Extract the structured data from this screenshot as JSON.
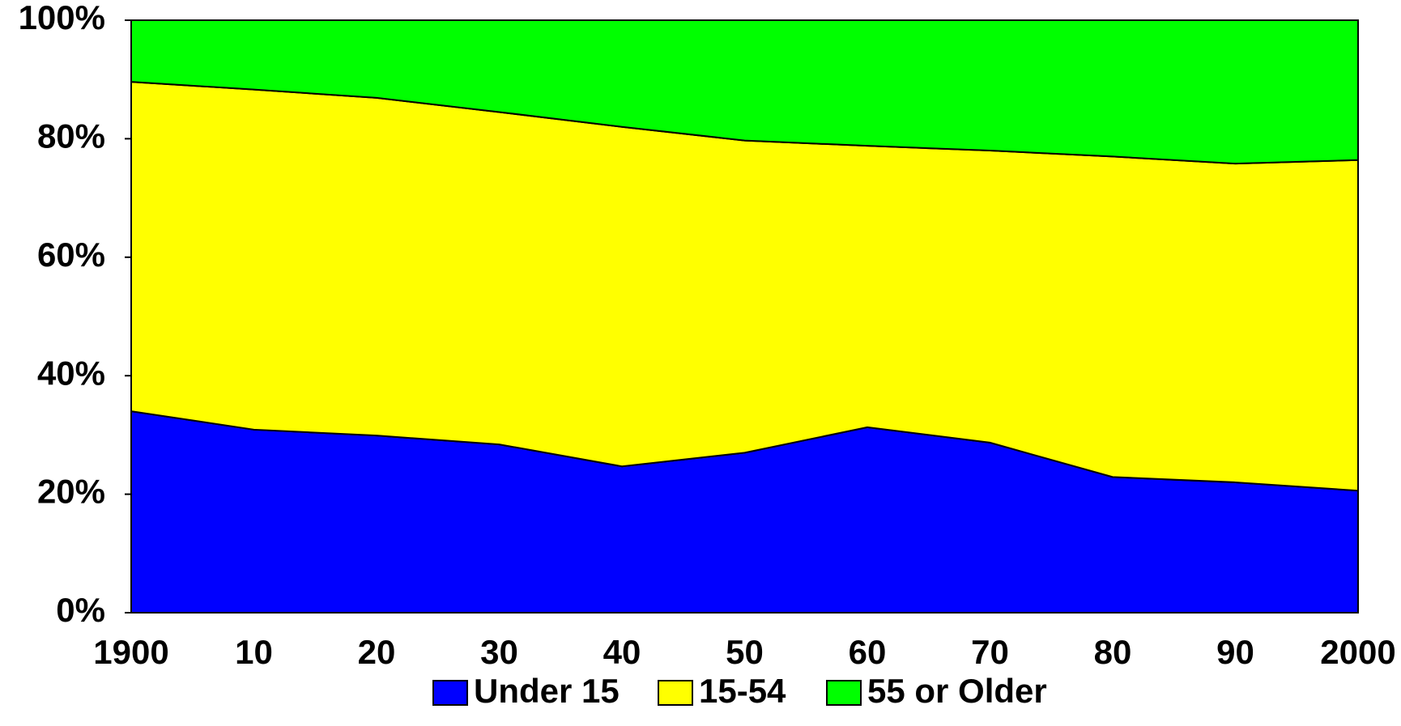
{
  "chart_data": {
    "type": "stacked_area",
    "categories": [
      "1900",
      "10",
      "20",
      "30",
      "40",
      "50",
      "60",
      "70",
      "80",
      "90",
      "2000"
    ],
    "series": [
      {
        "name": "Under 15",
        "color": "#0000ff",
        "values": [
          34.0,
          30.9,
          29.9,
          28.4,
          24.7,
          27.0,
          31.3,
          28.7,
          22.9,
          22.0,
          20.6
        ]
      },
      {
        "name": "15-54",
        "color": "#ffff00",
        "values": [
          55.6,
          57.4,
          57.0,
          56.1,
          57.3,
          52.7,
          47.5,
          49.3,
          54.1,
          53.8,
          55.8
        ]
      },
      {
        "name": "55 or Older",
        "color": "#00ff00",
        "values": [
          10.4,
          11.7,
          13.1,
          15.5,
          18.0,
          20.3,
          21.2,
          22.0,
          23.0,
          24.2,
          23.6
        ]
      }
    ],
    "ylim": [
      0,
      100
    ],
    "yticks": [
      {
        "value": 0,
        "label": "0%"
      },
      {
        "value": 20,
        "label": "20%"
      },
      {
        "value": 40,
        "label": "40%"
      },
      {
        "value": 60,
        "label": "60%"
      },
      {
        "value": 80,
        "label": "80%"
      },
      {
        "value": 100,
        "label": "100%"
      }
    ],
    "legend": "bottom"
  }
}
